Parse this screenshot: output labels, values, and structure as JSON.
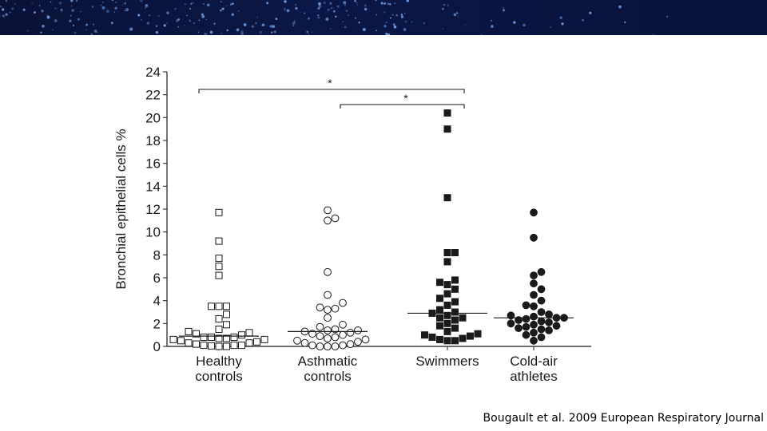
{
  "citation": {
    "authors": "Bougault et al.",
    "year": "2009",
    "journal": "European Respiratory Journal"
  },
  "colors": {
    "banner": "#0b1745",
    "banner_dots": "#7fb3ff",
    "ink": "#1a1a1a"
  },
  "chart_data": {
    "type": "scatter",
    "title": "",
    "xlabel": "",
    "ylabel": "Bronchial epithelial cells %",
    "ylim": [
      0,
      24
    ],
    "yticks": [
      0,
      2,
      4,
      6,
      8,
      10,
      12,
      14,
      16,
      18,
      20,
      22,
      24
    ],
    "grid": false,
    "categories": [
      {
        "line1": "Healthy",
        "line2": "controls"
      },
      {
        "line1": "Asthmatic",
        "line2": "controls"
      },
      {
        "line1": "Swimmers",
        "line2": ""
      },
      {
        "line1": "Cold-air",
        "line2": "athletes"
      }
    ],
    "series": [
      {
        "marker": "open-square",
        "median": 0.9,
        "values": [
          11.7,
          9.2,
          7.7,
          7.0,
          6.2,
          3.5,
          3.5,
          3.5,
          2.8,
          2.4,
          1.9,
          1.5,
          1.3,
          1.2,
          1.1,
          1.0,
          0.8,
          0.8,
          0.8,
          0.7,
          0.7,
          0.6,
          0.6,
          0.5,
          0.4,
          0.3,
          0.3,
          0.2,
          0.1,
          0.1,
          0.1,
          0.05,
          0.0,
          0.0
        ]
      },
      {
        "marker": "open-circle",
        "median": 1.3,
        "values": [
          11.9,
          11.2,
          11.0,
          6.5,
          4.5,
          3.8,
          3.4,
          3.3,
          3.2,
          2.5,
          1.9,
          1.7,
          1.5,
          1.4,
          1.4,
          1.3,
          1.2,
          1.1,
          1.0,
          0.9,
          0.8,
          0.7,
          0.6,
          0.5,
          0.4,
          0.3,
          0.2,
          0.1,
          0.1,
          0.0,
          0.0,
          0.0
        ]
      },
      {
        "marker": "filled-square",
        "median": 2.9,
        "values": [
          20.4,
          19.0,
          13.0,
          8.2,
          8.2,
          7.4,
          5.8,
          5.6,
          5.4,
          5.0,
          4.6,
          4.2,
          3.9,
          3.6,
          3.2,
          3.0,
          2.9,
          2.7,
          2.5,
          2.5,
          2.3,
          2.0,
          1.8,
          1.6,
          1.3,
          1.1,
          1.0,
          0.9,
          0.8,
          0.7,
          0.6,
          0.5,
          0.5
        ]
      },
      {
        "marker": "filled-circle",
        "median": 2.5,
        "values": [
          11.7,
          9.5,
          6.5,
          6.2,
          5.5,
          5.0,
          4.5,
          4.0,
          3.6,
          3.5,
          3.0,
          2.8,
          2.7,
          2.6,
          2.5,
          2.5,
          2.4,
          2.3,
          2.2,
          2.1,
          2.0,
          1.9,
          1.8,
          1.7,
          1.6,
          1.5,
          1.4,
          1.2,
          1.0,
          0.8,
          0.5
        ]
      }
    ],
    "annotations": [
      {
        "from": 0,
        "to": 2,
        "label": "*"
      },
      {
        "from": 1,
        "to": 2,
        "label": "*"
      }
    ]
  }
}
